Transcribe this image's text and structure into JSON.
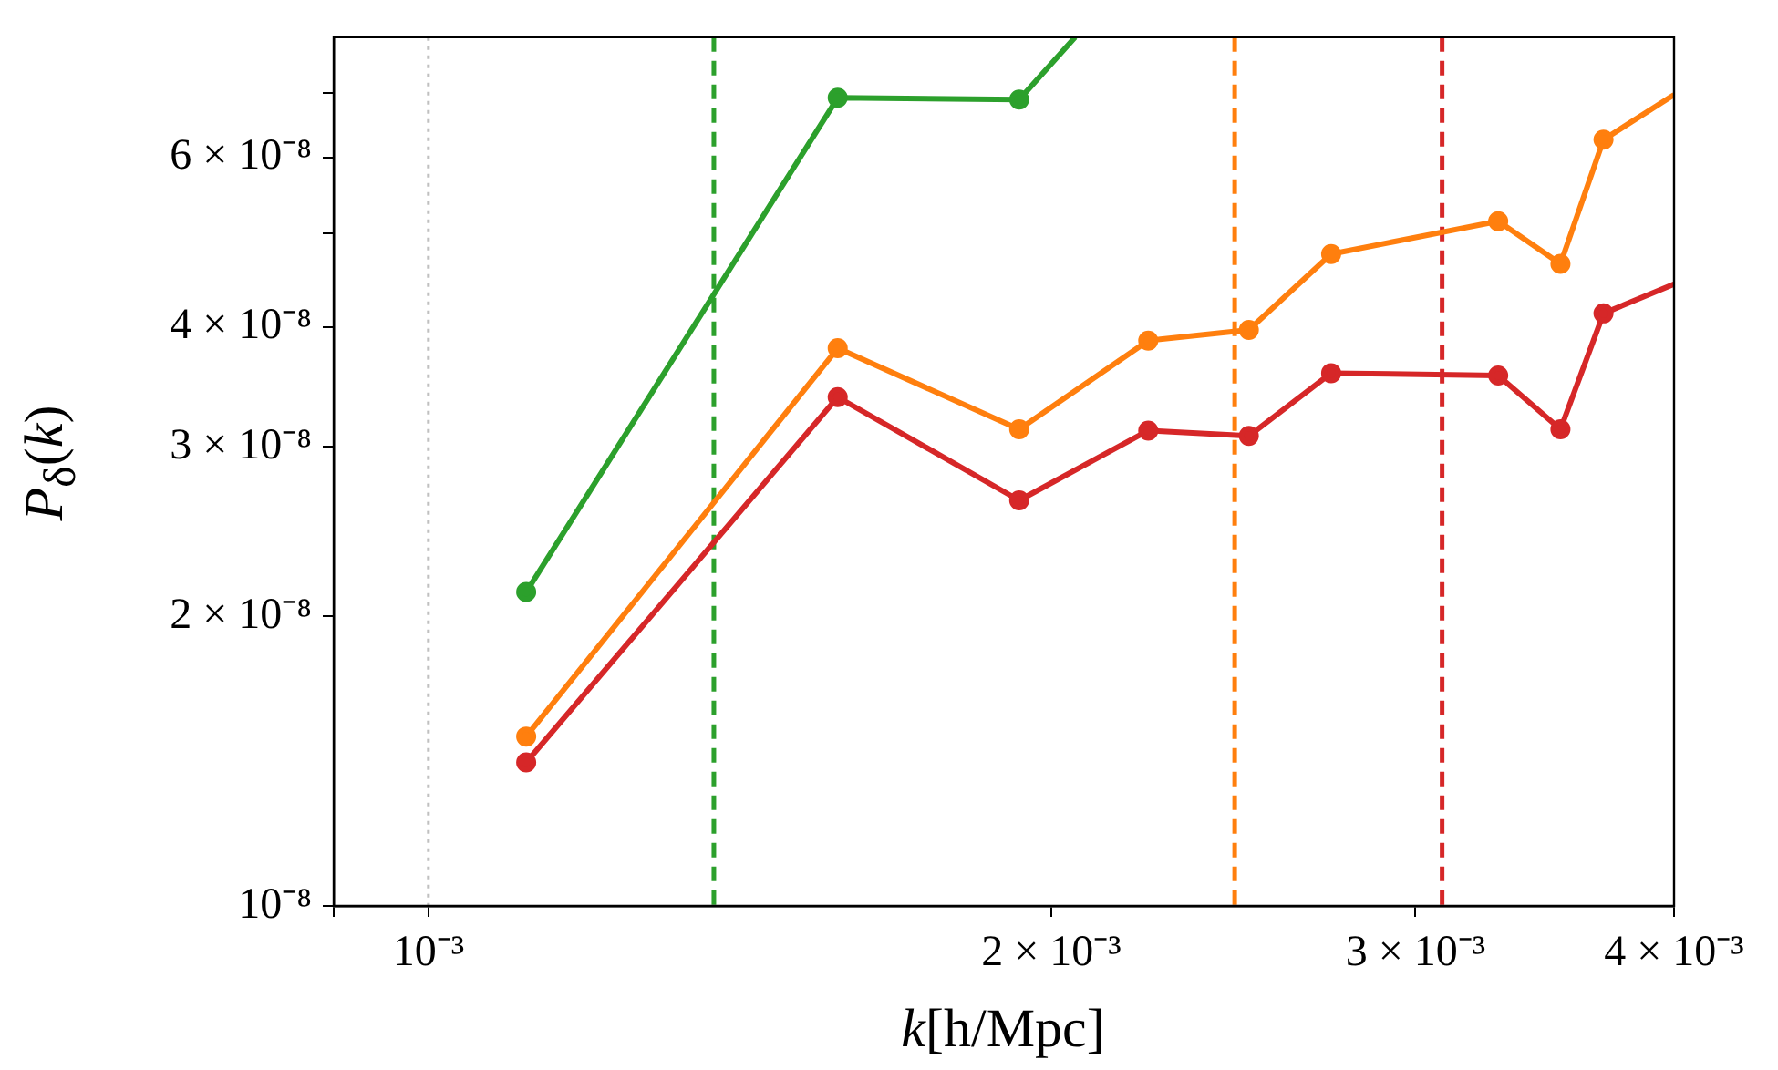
{
  "chart_data": {
    "type": "line",
    "xlabel": "k[h/Mpc]",
    "ylabel": "P$_{δ}$(k)",
    "log": "xy",
    "grid": false,
    "legend": false,
    "marker": "circle",
    "line_style": "solid",
    "xlim": [
      0.0009,
      0.004
    ],
    "xticks": [
      {
        "value": 0.0009,
        "label": null
      },
      {
        "value": 0.001,
        "label": "10⁻³"
      },
      {
        "value": 0.002,
        "label": "2 × 10⁻³"
      },
      {
        "value": 0.003,
        "label": "3 × 10⁻³"
      },
      {
        "value": 0.004,
        "label": "4 × 10⁻³"
      }
    ],
    "ylim": [
      1e-08,
      8e-08
    ],
    "yticks": [
      {
        "value": 1e-08,
        "label": "10⁻⁸"
      },
      {
        "value": 2e-08,
        "label": "2 × 10⁻⁸"
      },
      {
        "value": 3e-08,
        "label": "3 × 10⁻⁸"
      },
      {
        "value": 4e-08,
        "label": "4 × 10⁻⁸"
      },
      {
        "value": 5e-08,
        "label": null
      },
      {
        "value": 6e-08,
        "label": "6 × 10⁻⁸"
      },
      {
        "value": 7e-08,
        "label": null
      }
    ],
    "series": [
      {
        "color": "#2ca02c",
        "x": [
          0.001115,
          0.001577,
          0.00193,
          0.002054
        ],
        "values": [
          2.12e-08,
          6.92e-08,
          6.89e-08,
          8e-08
        ]
      },
      {
        "color": "#ff7f0e",
        "x": [
          0.001115,
          0.001577,
          0.00193,
          0.002228,
          0.002492,
          0.002731,
          0.003289,
          0.003525,
          0.003698,
          0.004
        ],
        "values": [
          1.5e-08,
          3.8e-08,
          3.13e-08,
          3.87e-08,
          3.97e-08,
          4.76e-08,
          5.15e-08,
          4.65e-08,
          6.26e-08,
          6.97e-08
        ]
      },
      {
        "color": "#d62728",
        "x": [
          0.001115,
          0.001577,
          0.00193,
          0.002228,
          0.002492,
          0.002731,
          0.003289,
          0.003525,
          0.003698,
          0.004
        ],
        "values": [
          1.41e-08,
          3.38e-08,
          2.64e-08,
          3.12e-08,
          3.08e-08,
          3.58e-08,
          3.56e-08,
          3.13e-08,
          4.13e-08,
          4.43e-08
        ]
      }
    ],
    "ref_lines": [
      {
        "axis": "x",
        "value": 0.001,
        "color": "#c0c0c0",
        "line_style": "dotted"
      },
      {
        "axis": "x",
        "value": 0.001374,
        "color": "#2ca02c",
        "line_style": "dashed"
      },
      {
        "axis": "x",
        "value": 0.002453,
        "color": "#ff7f0e",
        "line_style": "dashed"
      },
      {
        "axis": "x",
        "value": 0.00309,
        "color": "#d62728",
        "line_style": "dashed"
      }
    ]
  }
}
